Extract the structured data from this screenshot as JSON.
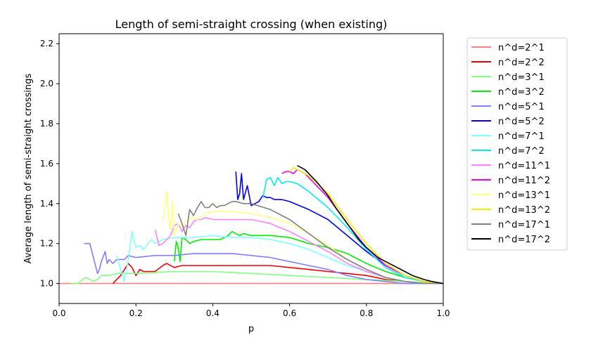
{
  "chart_data": {
    "type": "line",
    "title": "Length of semi-straight crossing (when existing)",
    "xlabel": "p",
    "ylabel": "Average length of semi-straight crossings",
    "xlim": [
      0.0,
      1.0
    ],
    "ylim": [
      0.9,
      2.25
    ],
    "xticks": [
      "0.0",
      "0.2",
      "0.4",
      "0.6",
      "0.8",
      "1.0"
    ],
    "xtick_values": [
      0.0,
      0.2,
      0.4,
      0.6,
      0.8,
      1.0
    ],
    "yticks": [
      "1.0",
      "1.2",
      "1.4",
      "1.6",
      "1.8",
      "2.0",
      "2.2"
    ],
    "ytick_values": [
      1.0,
      1.2,
      1.4,
      1.6,
      1.8,
      2.0,
      2.2
    ],
    "grid": false,
    "legend_position": "outside-right",
    "series": [
      {
        "name": "n^d=2^1",
        "color": "#ff7f7f",
        "x": [
          0.0,
          0.2,
          0.4,
          0.6,
          0.8,
          1.0
        ],
        "y": [
          1.0,
          1.0,
          1.0,
          1.0,
          1.0,
          1.0
        ]
      },
      {
        "name": "n^d=2^2",
        "color": "#ee0000",
        "x": [
          0.14,
          0.16,
          0.18,
          0.19,
          0.2,
          0.21,
          0.22,
          0.23,
          0.25,
          0.27,
          0.28,
          0.3,
          0.32,
          0.35,
          0.4,
          0.45,
          0.5,
          0.55,
          0.6,
          0.65,
          0.7,
          0.75,
          0.8,
          0.85,
          0.9,
          0.95,
          1.0
        ],
        "y": [
          1.0,
          1.04,
          1.1,
          1.08,
          1.04,
          1.07,
          1.06,
          1.06,
          1.06,
          1.09,
          1.1,
          1.08,
          1.09,
          1.09,
          1.09,
          1.09,
          1.09,
          1.09,
          1.08,
          1.07,
          1.06,
          1.05,
          1.04,
          1.02,
          1.01,
          1.0,
          1.0
        ]
      },
      {
        "name": "n^d=3^1",
        "color": "#7fff7f",
        "x": [
          0.03,
          0.05,
          0.06,
          0.07,
          0.08,
          0.09,
          0.1,
          0.11,
          0.13,
          0.15,
          0.2,
          0.3,
          0.4,
          0.5,
          0.6,
          0.7,
          0.8,
          0.9,
          1.0
        ],
        "y": [
          1.0,
          1.0,
          1.02,
          1.03,
          1.02,
          1.01,
          1.02,
          1.04,
          1.04,
          1.05,
          1.05,
          1.06,
          1.06,
          1.05,
          1.04,
          1.03,
          1.02,
          1.01,
          1.0
        ]
      },
      {
        "name": "n^d=3^2",
        "color": "#00ee00",
        "x": [
          0.3,
          0.305,
          0.31,
          0.315,
          0.32,
          0.33,
          0.34,
          0.35,
          0.37,
          0.4,
          0.42,
          0.44,
          0.45,
          0.47,
          0.48,
          0.5,
          0.55,
          0.6,
          0.65,
          0.7,
          0.75,
          0.8,
          0.85,
          0.9,
          0.95,
          1.0
        ],
        "y": [
          1.11,
          1.21,
          1.18,
          1.11,
          1.23,
          1.22,
          1.2,
          1.21,
          1.22,
          1.22,
          1.22,
          1.24,
          1.26,
          1.24,
          1.25,
          1.24,
          1.24,
          1.23,
          1.2,
          1.18,
          1.15,
          1.1,
          1.06,
          1.03,
          1.01,
          1.0
        ]
      },
      {
        "name": "n^d=5^1",
        "color": "#7f7fff",
        "x": [
          0.065,
          0.08,
          0.1,
          0.105,
          0.11,
          0.12,
          0.125,
          0.13,
          0.14,
          0.15,
          0.16,
          0.17,
          0.18,
          0.2,
          0.25,
          0.3,
          0.35,
          0.4,
          0.45,
          0.5,
          0.55,
          0.6,
          0.65,
          0.7,
          0.75,
          0.8,
          0.85,
          0.9,
          0.95,
          1.0
        ],
        "y": [
          1.2,
          1.2,
          1.05,
          1.07,
          1.11,
          1.16,
          1.1,
          1.12,
          1.1,
          1.12,
          1.12,
          1.12,
          1.14,
          1.13,
          1.14,
          1.14,
          1.15,
          1.15,
          1.15,
          1.14,
          1.13,
          1.11,
          1.09,
          1.07,
          1.04,
          1.02,
          1.01,
          1.0,
          1.0,
          1.0
        ]
      },
      {
        "name": "n^d=5^2",
        "color": "#0000ee",
        "x": [
          0.46,
          0.465,
          0.47,
          0.475,
          0.48,
          0.49,
          0.5,
          0.51,
          0.52,
          0.53,
          0.54,
          0.55,
          0.56,
          0.58,
          0.6,
          0.65,
          0.7,
          0.75,
          0.8,
          0.85,
          0.9,
          0.95,
          1.0
        ],
        "y": [
          1.56,
          1.42,
          1.45,
          1.55,
          1.42,
          1.49,
          1.39,
          1.4,
          1.41,
          1.44,
          1.43,
          1.43,
          1.42,
          1.42,
          1.41,
          1.37,
          1.32,
          1.24,
          1.16,
          1.09,
          1.04,
          1.01,
          1.0
        ]
      },
      {
        "name": "n^d=7^1",
        "color": "#7fffff",
        "x": [
          0.15,
          0.16,
          0.17,
          0.18,
          0.19,
          0.2,
          0.21,
          0.22,
          0.24,
          0.25,
          0.27,
          0.3,
          0.35,
          0.4,
          0.45,
          0.5,
          0.55,
          0.6,
          0.65,
          0.7,
          0.75,
          0.8,
          0.85,
          0.9,
          0.95,
          1.0
        ],
        "y": [
          1.14,
          1.07,
          1.01,
          1.12,
          1.26,
          1.18,
          1.19,
          1.17,
          1.22,
          1.2,
          1.22,
          1.23,
          1.23,
          1.24,
          1.23,
          1.23,
          1.22,
          1.2,
          1.17,
          1.13,
          1.09,
          1.06,
          1.03,
          1.01,
          1.0,
          1.0
        ]
      },
      {
        "name": "n^d=7^2",
        "color": "#00eeee",
        "x": [
          0.53,
          0.535,
          0.54,
          0.55,
          0.56,
          0.57,
          0.58,
          0.59,
          0.6,
          0.62,
          0.65,
          0.7,
          0.75,
          0.8,
          0.85,
          0.9,
          0.95,
          1.0
        ],
        "y": [
          1.43,
          1.47,
          1.52,
          1.53,
          1.49,
          1.53,
          1.5,
          1.51,
          1.51,
          1.5,
          1.46,
          1.38,
          1.28,
          1.17,
          1.08,
          1.03,
          1.01,
          1.0
        ]
      },
      {
        "name": "n^d=11^1",
        "color": "#ff7fff",
        "x": [
          0.25,
          0.26,
          0.27,
          0.28,
          0.29,
          0.3,
          0.31,
          0.32,
          0.33,
          0.34,
          0.35,
          0.36,
          0.37,
          0.38,
          0.4,
          0.45,
          0.5,
          0.55,
          0.6,
          0.65,
          0.7,
          0.75,
          0.8,
          0.85,
          0.9,
          0.95,
          1.0
        ],
        "y": [
          1.27,
          1.19,
          1.2,
          1.22,
          1.24,
          1.29,
          1.3,
          1.26,
          1.29,
          1.28,
          1.31,
          1.32,
          1.32,
          1.33,
          1.32,
          1.32,
          1.32,
          1.3,
          1.26,
          1.21,
          1.16,
          1.1,
          1.06,
          1.03,
          1.01,
          1.0,
          1.0
        ]
      },
      {
        "name": "n^d=11^2",
        "color": "#ee00ee",
        "x": [
          0.58,
          0.59,
          0.6,
          0.61,
          0.615,
          0.62,
          0.63,
          0.64,
          0.65,
          0.7,
          0.75,
          0.8,
          0.85,
          0.9,
          0.95,
          1.0
        ],
        "y": [
          1.55,
          1.56,
          1.56,
          1.55,
          1.56,
          1.57,
          1.56,
          1.55,
          1.53,
          1.43,
          1.3,
          1.18,
          1.09,
          1.04,
          1.01,
          1.0
        ]
      },
      {
        "name": "n^d=13^1",
        "color": "#ffff7f",
        "x": [
          0.27,
          0.28,
          0.285,
          0.29,
          0.295,
          0.3,
          0.31,
          0.32,
          0.33,
          0.34,
          0.35,
          0.36,
          0.38,
          0.4,
          0.45,
          0.5,
          0.55,
          0.6,
          0.65,
          0.7,
          0.75,
          0.8,
          0.85,
          0.9,
          0.95,
          1.0
        ],
        "y": [
          1.31,
          1.46,
          1.32,
          1.27,
          1.41,
          1.24,
          1.3,
          1.28,
          1.31,
          1.33,
          1.33,
          1.32,
          1.35,
          1.36,
          1.36,
          1.35,
          1.33,
          1.3,
          1.25,
          1.19,
          1.12,
          1.07,
          1.03,
          1.01,
          1.0,
          1.0
        ]
      },
      {
        "name": "n^d=13^2",
        "color": "#eeee00",
        "x": [
          0.6,
          0.61,
          0.62,
          0.63,
          0.65,
          0.7,
          0.75,
          0.8,
          0.85,
          0.9,
          0.95,
          1.0
        ],
        "y": [
          1.56,
          1.58,
          1.57,
          1.56,
          1.54,
          1.45,
          1.32,
          1.2,
          1.1,
          1.04,
          1.01,
          1.0
        ]
      },
      {
        "name": "n^d=17^1",
        "color": "#7f7f7f",
        "x": [
          0.31,
          0.32,
          0.33,
          0.34,
          0.35,
          0.36,
          0.37,
          0.38,
          0.39,
          0.4,
          0.41,
          0.42,
          0.43,
          0.44,
          0.45,
          0.46,
          0.48,
          0.5,
          0.55,
          0.6,
          0.65,
          0.7,
          0.75,
          0.8,
          0.85,
          0.9,
          0.95,
          1.0
        ],
        "y": [
          1.35,
          1.3,
          1.24,
          1.37,
          1.34,
          1.38,
          1.41,
          1.38,
          1.38,
          1.4,
          1.38,
          1.39,
          1.39,
          1.4,
          1.41,
          1.41,
          1.4,
          1.4,
          1.37,
          1.32,
          1.25,
          1.18,
          1.12,
          1.07,
          1.03,
          1.01,
          1.0,
          1.0
        ]
      },
      {
        "name": "n^d=17^2",
        "color": "#000000",
        "x": [
          0.62,
          0.63,
          0.64,
          0.65,
          0.67,
          0.7,
          0.72,
          0.75,
          0.78,
          0.8,
          0.83,
          0.85,
          0.88,
          0.9,
          0.92,
          0.95,
          0.97,
          1.0
        ],
        "y": [
          1.59,
          1.58,
          1.57,
          1.55,
          1.51,
          1.44,
          1.38,
          1.3,
          1.22,
          1.18,
          1.13,
          1.11,
          1.08,
          1.06,
          1.04,
          1.02,
          1.01,
          1.0
        ]
      }
    ]
  }
}
